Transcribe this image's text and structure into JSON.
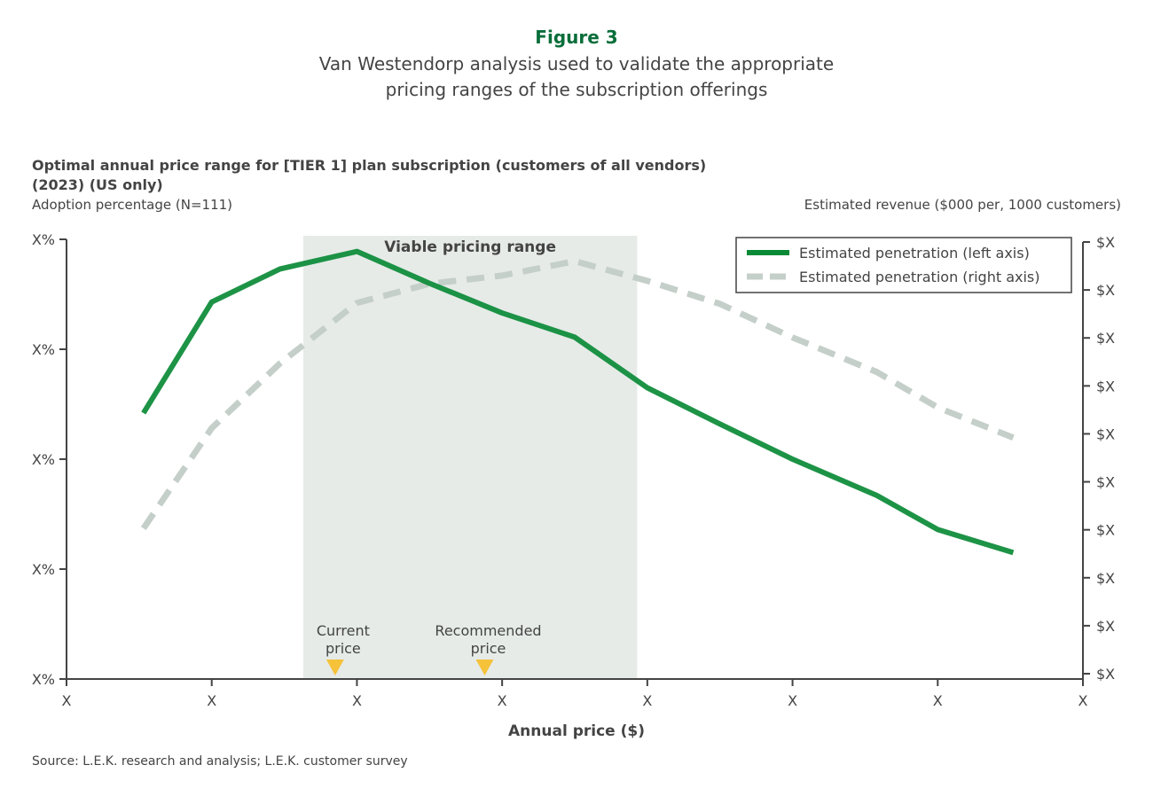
{
  "figure_label": "Figure 3",
  "subtitle_lines": [
    "Van Westendorp analysis used to validate the appropriate",
    "pricing ranges of the subscription offerings"
  ],
  "source": "Source: L.E.K. research and analysis; L.E.K. customer survey",
  "chart_data": {
    "type": "line",
    "title": "Optimal annual price range for [TIER 1] plan subscription (customers of all vendors) (2023) (US only)",
    "title_lines": [
      "Optimal annual price range for [TIER 1] plan subscription (customers of all vendors)",
      "(2023) (US only)"
    ],
    "xlabel": "Annual price ($)",
    "ylabel_left": "Adoption percentage (N=111)",
    "ylabel_right": "Estimated revenue ($000 per, 1000 customers)",
    "x_ticks": [
      "X",
      "X",
      "X",
      "X",
      "X",
      "X",
      "X",
      "X"
    ],
    "y_left_ticks": [
      "X%",
      "X%",
      "X%",
      "X%",
      "X%"
    ],
    "y_right_ticks": [
      "$X",
      "$X",
      "$X",
      "$X",
      "$X",
      "$X",
      "$X",
      "$X",
      "$X",
      "$X"
    ],
    "xlim": [
      0,
      7
    ],
    "ylim_left": [
      0,
      4
    ],
    "ylim_right": [
      0,
      9
    ],
    "x": [
      0.53,
      1,
      1.47,
      2,
      2.5,
      3,
      3.5,
      4,
      4.5,
      5,
      5.58,
      6,
      6.52
    ],
    "series": [
      {
        "name": "Estimated penetration (left axis)",
        "axis": "left",
        "style": "solid",
        "color": "#0a8a36",
        "values": [
          2.42,
          3.43,
          3.73,
          3.89,
          3.6,
          3.33,
          3.11,
          2.65,
          2.32,
          2.0,
          1.67,
          1.36,
          1.15
        ]
      },
      {
        "name": "Estimated penetration (right axis)",
        "axis": "right",
        "style": "dashed",
        "color": "#c5cfca",
        "values": [
          3.03,
          5.12,
          6.47,
          7.73,
          8.13,
          8.3,
          8.6,
          8.19,
          7.71,
          7.01,
          6.29,
          5.55,
          4.92
        ]
      }
    ],
    "shaded_region": {
      "label": "Viable pricing range",
      "x": [
        1.63,
        3.93
      ],
      "color": "#e6ebe8"
    },
    "markers": [
      {
        "label_lines": [
          "Current",
          "price"
        ],
        "x": 1.85,
        "color": "#f5c23a"
      },
      {
        "label_lines": [
          "Recommended",
          "price"
        ],
        "x": 2.88,
        "color": "#f5c23a"
      }
    ],
    "legend_position": "top-right",
    "grid": false
  }
}
